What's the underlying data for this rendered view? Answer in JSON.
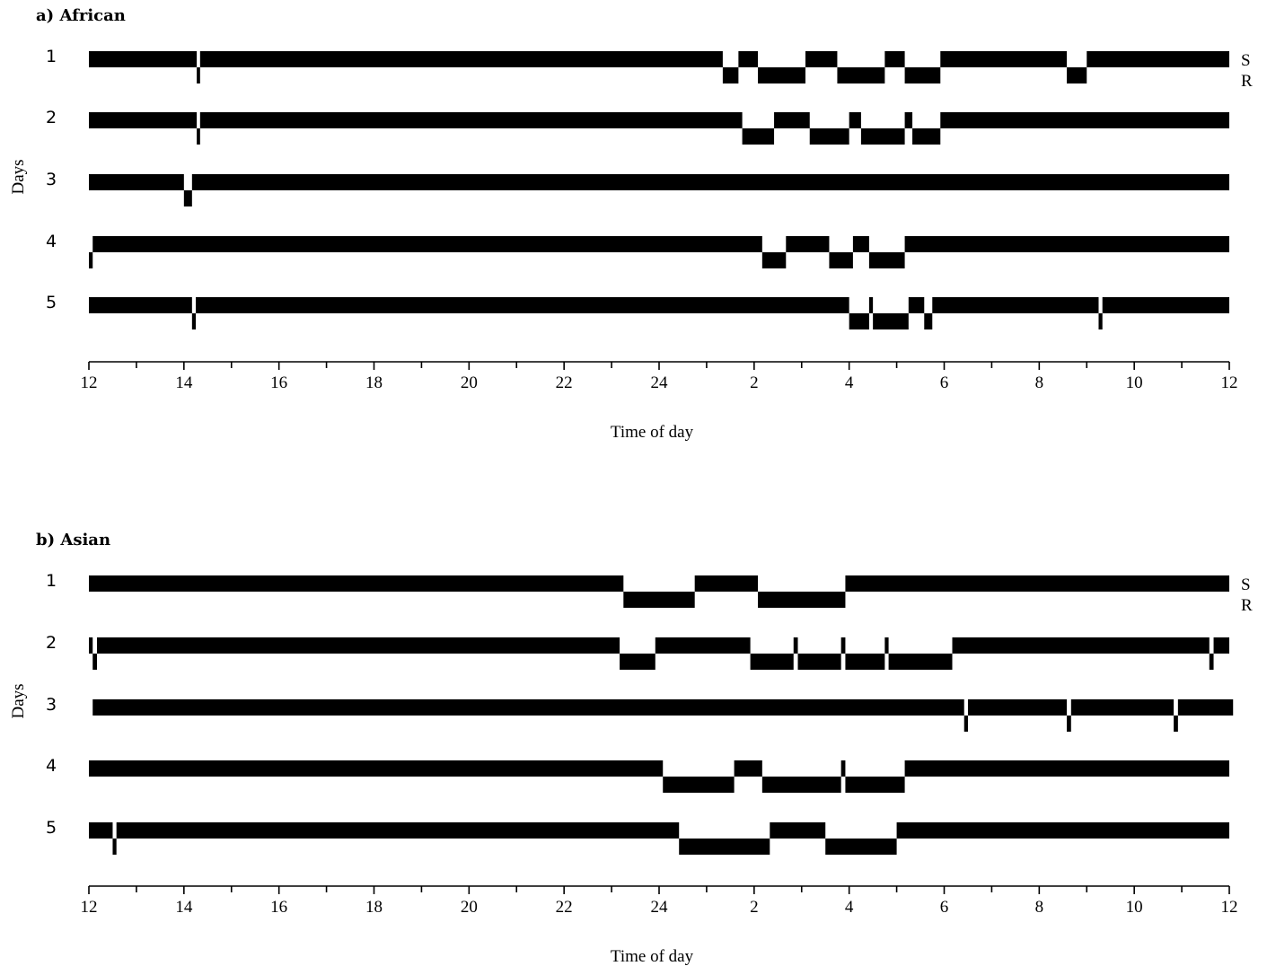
{
  "figure": {
    "background": "#ffffff",
    "bar_color": "#000000"
  },
  "chart_data": [
    {
      "type": "state-timeline",
      "title": "a) African",
      "ylabel": "Days",
      "xlabel": "Time of day",
      "x_range_hours": [
        0,
        24
      ],
      "x_ticks": [
        "12",
        "14",
        "16",
        "18",
        "20",
        "22",
        "24",
        "2",
        "4",
        "6",
        "8",
        "10",
        "12"
      ],
      "state_labels": [
        "S",
        "R"
      ],
      "days": [
        {
          "label": "1",
          "segments": [
            {
              "state": "S",
              "start": 0.0,
              "end": 2.27
            },
            {
              "state": "R",
              "start": 2.27,
              "end": 2.34
            },
            {
              "state": "S",
              "start": 2.34,
              "end": 13.34
            },
            {
              "state": "R",
              "start": 13.34,
              "end": 13.67
            },
            {
              "state": "S",
              "start": 13.67,
              "end": 14.08
            },
            {
              "state": "R",
              "start": 14.08,
              "end": 15.08
            },
            {
              "state": "S",
              "start": 15.08,
              "end": 15.75
            },
            {
              "state": "R",
              "start": 15.75,
              "end": 16.75
            },
            {
              "state": "S",
              "start": 16.75,
              "end": 17.17
            },
            {
              "state": "R",
              "start": 17.17,
              "end": 17.92
            },
            {
              "state": "S",
              "start": 17.92,
              "end": 20.58
            },
            {
              "state": "R",
              "start": 20.58,
              "end": 21.0
            },
            {
              "state": "S",
              "start": 21.0,
              "end": 24.0
            }
          ]
        },
        {
          "label": "2",
          "segments": [
            {
              "state": "S",
              "start": 0.0,
              "end": 2.27
            },
            {
              "state": "R",
              "start": 2.27,
              "end": 2.34
            },
            {
              "state": "S",
              "start": 2.34,
              "end": 13.75
            },
            {
              "state": "R",
              "start": 13.75,
              "end": 14.42
            },
            {
              "state": "S",
              "start": 14.42,
              "end": 15.17
            },
            {
              "state": "R",
              "start": 15.17,
              "end": 16.0
            },
            {
              "state": "S",
              "start": 16.0,
              "end": 16.25
            },
            {
              "state": "R",
              "start": 16.25,
              "end": 17.17
            },
            {
              "state": "S",
              "start": 17.17,
              "end": 17.33
            },
            {
              "state": "R",
              "start": 17.33,
              "end": 17.92
            },
            {
              "state": "S",
              "start": 17.92,
              "end": 24.0
            }
          ]
        },
        {
          "label": "3",
          "segments": [
            {
              "state": "S",
              "start": 0.0,
              "end": 2.0
            },
            {
              "state": "R",
              "start": 2.0,
              "end": 2.17
            },
            {
              "state": "S",
              "start": 2.17,
              "end": 24.0
            }
          ]
        },
        {
          "label": "4",
          "segments": [
            {
              "state": "R",
              "start": 0.0,
              "end": 0.08
            },
            {
              "state": "S",
              "start": 0.08,
              "end": 14.17
            },
            {
              "state": "R",
              "start": 14.17,
              "end": 14.67
            },
            {
              "state": "S",
              "start": 14.67,
              "end": 15.58
            },
            {
              "state": "R",
              "start": 15.58,
              "end": 16.08
            },
            {
              "state": "S",
              "start": 16.08,
              "end": 16.42
            },
            {
              "state": "R",
              "start": 16.42,
              "end": 17.17
            },
            {
              "state": "S",
              "start": 17.17,
              "end": 24.0
            }
          ]
        },
        {
          "label": "5",
          "segments": [
            {
              "state": "S",
              "start": 0.0,
              "end": 2.17
            },
            {
              "state": "R",
              "start": 2.17,
              "end": 2.25
            },
            {
              "state": "S",
              "start": 2.25,
              "end": 16.0
            },
            {
              "state": "R",
              "start": 16.0,
              "end": 16.42
            },
            {
              "state": "S",
              "start": 16.42,
              "end": 16.5
            },
            {
              "state": "R",
              "start": 16.5,
              "end": 17.25
            },
            {
              "state": "S",
              "start": 17.25,
              "end": 17.58
            },
            {
              "state": "R",
              "start": 17.58,
              "end": 17.75
            },
            {
              "state": "S",
              "start": 17.75,
              "end": 21.25
            },
            {
              "state": "R",
              "start": 21.25,
              "end": 21.33
            },
            {
              "state": "S",
              "start": 21.33,
              "end": 24.0
            }
          ]
        }
      ]
    },
    {
      "type": "state-timeline",
      "title": "b) Asian",
      "ylabel": "Days",
      "xlabel": "Time of day",
      "x_range_hours": [
        0,
        24
      ],
      "x_ticks": [
        "12",
        "14",
        "16",
        "18",
        "20",
        "22",
        "24",
        "2",
        "4",
        "6",
        "8",
        "10",
        "12"
      ],
      "state_labels": [
        "S",
        "R"
      ],
      "days": [
        {
          "label": "1",
          "segments": [
            {
              "state": "S",
              "start": 0.0,
              "end": 11.25
            },
            {
              "state": "R",
              "start": 11.25,
              "end": 12.75
            },
            {
              "state": "S",
              "start": 12.75,
              "end": 14.08
            },
            {
              "state": "R",
              "start": 14.08,
              "end": 15.92
            },
            {
              "state": "S",
              "start": 15.92,
              "end": 24.0
            }
          ]
        },
        {
          "label": "2",
          "segments": [
            {
              "state": "S",
              "start": 0.0,
              "end": 0.08
            },
            {
              "state": "R",
              "start": 0.08,
              "end": 0.17
            },
            {
              "state": "S",
              "start": 0.17,
              "end": 11.17
            },
            {
              "state": "R",
              "start": 11.17,
              "end": 11.92
            },
            {
              "state": "S",
              "start": 11.92,
              "end": 13.92
            },
            {
              "state": "R",
              "start": 13.92,
              "end": 14.83
            },
            {
              "state": "S",
              "start": 14.83,
              "end": 14.92
            },
            {
              "state": "R",
              "start": 14.92,
              "end": 15.83
            },
            {
              "state": "S",
              "start": 15.83,
              "end": 15.92
            },
            {
              "state": "R",
              "start": 15.92,
              "end": 16.75
            },
            {
              "state": "S",
              "start": 16.75,
              "end": 16.83
            },
            {
              "state": "R",
              "start": 16.83,
              "end": 18.17
            },
            {
              "state": "S",
              "start": 18.17,
              "end": 23.58
            },
            {
              "state": "R",
              "start": 23.58,
              "end": 23.67
            },
            {
              "state": "S",
              "start": 23.67,
              "end": 24.0
            }
          ]
        },
        {
          "label": "3",
          "segments": [
            {
              "state": "S",
              "start": 0.08,
              "end": 18.42
            },
            {
              "state": "R",
              "start": 18.42,
              "end": 18.5
            },
            {
              "state": "S",
              "start": 18.5,
              "end": 20.58
            },
            {
              "state": "R",
              "start": 20.58,
              "end": 20.67
            },
            {
              "state": "S",
              "start": 20.67,
              "end": 22.83
            },
            {
              "state": "R",
              "start": 22.83,
              "end": 22.92
            },
            {
              "state": "S",
              "start": 22.92,
              "end": 24.08
            }
          ]
        },
        {
          "label": "4",
          "segments": [
            {
              "state": "S",
              "start": 0.0,
              "end": 12.08
            },
            {
              "state": "R",
              "start": 12.08,
              "end": 13.58
            },
            {
              "state": "S",
              "start": 13.58,
              "end": 14.17
            },
            {
              "state": "R",
              "start": 14.17,
              "end": 15.83
            },
            {
              "state": "S",
              "start": 15.83,
              "end": 15.92
            },
            {
              "state": "R",
              "start": 15.92,
              "end": 17.17
            },
            {
              "state": "S",
              "start": 17.17,
              "end": 24.0
            }
          ]
        },
        {
          "label": "5",
          "segments": [
            {
              "state": "S",
              "start": 0.0,
              "end": 0.5
            },
            {
              "state": "R",
              "start": 0.5,
              "end": 0.58
            },
            {
              "state": "S",
              "start": 0.58,
              "end": 12.42
            },
            {
              "state": "R",
              "start": 12.42,
              "end": 14.33
            },
            {
              "state": "S",
              "start": 14.33,
              "end": 15.5
            },
            {
              "state": "R",
              "start": 15.5,
              "end": 17.0
            },
            {
              "state": "S",
              "start": 17.0,
              "end": 24.0
            }
          ]
        }
      ]
    }
  ]
}
